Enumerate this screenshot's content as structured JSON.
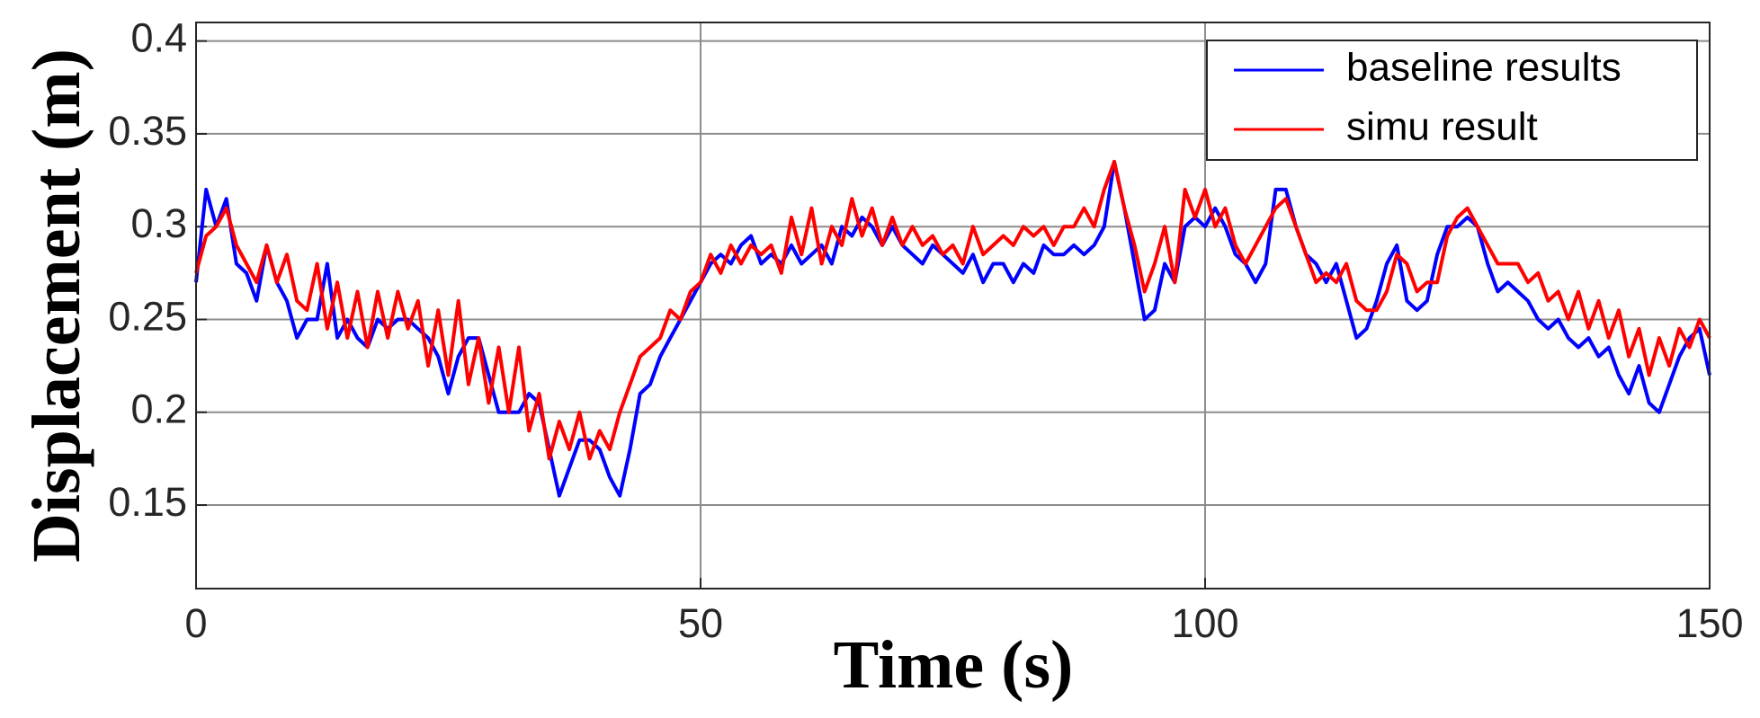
{
  "chart_data": {
    "type": "line",
    "x_label": "Time (s)",
    "y_label": "Displacement (m)",
    "xlim": [
      0,
      150
    ],
    "xticks": [
      0,
      50,
      100,
      150
    ],
    "ylim": [
      0.105,
      0.41
    ],
    "yticks": [
      0.15,
      0.2,
      0.25,
      0.3,
      0.35,
      0.4
    ],
    "grid": true,
    "legend": "top-right",
    "x": [
      0,
      1,
      2,
      3,
      4,
      5,
      6,
      7,
      8,
      9,
      10,
      11,
      12,
      13,
      14,
      15,
      16,
      17,
      18,
      19,
      20,
      21,
      22,
      23,
      24,
      25,
      26,
      27,
      28,
      29,
      30,
      31,
      32,
      33,
      34,
      35,
      36,
      37,
      38,
      39,
      40,
      41,
      42,
      43,
      44,
      45,
      46,
      47,
      48,
      49,
      50,
      51,
      52,
      53,
      54,
      55,
      56,
      57,
      58,
      59,
      60,
      61,
      62,
      63,
      64,
      65,
      66,
      67,
      68,
      69,
      70,
      71,
      72,
      73,
      74,
      75,
      76,
      77,
      78,
      79,
      80,
      81,
      82,
      83,
      84,
      85,
      86,
      87,
      88,
      89,
      90,
      91,
      92,
      93,
      94,
      95,
      96,
      97,
      98,
      99,
      100,
      101,
      102,
      103,
      104,
      105,
      106,
      107,
      108,
      109,
      110,
      111,
      112,
      113,
      114,
      115,
      116,
      117,
      118,
      119,
      120,
      121,
      122,
      123,
      124,
      125,
      126,
      127,
      128,
      129,
      130,
      131,
      132,
      133,
      134,
      135,
      136,
      137,
      138,
      139,
      140,
      141,
      142,
      143,
      144,
      145,
      146,
      147,
      148,
      149,
      150
    ],
    "series": [
      {
        "name": "baseline results",
        "color": "#0000ff",
        "values": [
          0.27,
          0.32,
          0.3,
          0.315,
          0.28,
          0.275,
          0.26,
          0.29,
          0.27,
          0.26,
          0.24,
          0.25,
          0.25,
          0.28,
          0.24,
          0.25,
          0.24,
          0.235,
          0.25,
          0.245,
          0.25,
          0.25,
          0.245,
          0.24,
          0.23,
          0.21,
          0.23,
          0.24,
          0.24,
          0.22,
          0.2,
          0.2,
          0.2,
          0.21,
          0.205,
          0.18,
          0.155,
          0.17,
          0.185,
          0.185,
          0.18,
          0.165,
          0.155,
          0.18,
          0.21,
          0.215,
          0.23,
          0.24,
          0.25,
          0.26,
          0.27,
          0.28,
          0.285,
          0.28,
          0.29,
          0.295,
          0.28,
          0.285,
          0.28,
          0.29,
          0.28,
          0.285,
          0.29,
          0.28,
          0.3,
          0.295,
          0.305,
          0.3,
          0.29,
          0.3,
          0.29,
          0.285,
          0.28,
          0.29,
          0.285,
          0.28,
          0.275,
          0.285,
          0.27,
          0.28,
          0.28,
          0.27,
          0.28,
          0.275,
          0.29,
          0.285,
          0.285,
          0.29,
          0.285,
          0.29,
          0.3,
          0.335,
          0.31,
          0.28,
          0.25,
          0.255,
          0.28,
          0.27,
          0.3,
          0.305,
          0.3,
          0.31,
          0.3,
          0.285,
          0.28,
          0.27,
          0.28,
          0.32,
          0.32,
          0.3,
          0.285,
          0.28,
          0.27,
          0.28,
          0.26,
          0.24,
          0.245,
          0.26,
          0.28,
          0.29,
          0.26,
          0.255,
          0.26,
          0.285,
          0.3,
          0.3,
          0.305,
          0.3,
          0.28,
          0.265,
          0.27,
          0.265,
          0.26,
          0.25,
          0.245,
          0.25,
          0.24,
          0.235,
          0.24,
          0.23,
          0.235,
          0.22,
          0.21,
          0.225,
          0.205,
          0.2,
          0.215,
          0.23,
          0.24,
          0.245,
          0.22
        ]
      },
      {
        "name": "simu result",
        "color": "#ff0000",
        "values": [
          0.275,
          0.295,
          0.3,
          0.31,
          0.29,
          0.28,
          0.27,
          0.29,
          0.27,
          0.285,
          0.26,
          0.255,
          0.28,
          0.245,
          0.27,
          0.24,
          0.265,
          0.235,
          0.265,
          0.24,
          0.265,
          0.245,
          0.26,
          0.225,
          0.255,
          0.22,
          0.26,
          0.215,
          0.24,
          0.205,
          0.235,
          0.2,
          0.235,
          0.19,
          0.21,
          0.175,
          0.195,
          0.18,
          0.2,
          0.175,
          0.19,
          0.18,
          0.2,
          0.215,
          0.23,
          0.235,
          0.24,
          0.255,
          0.25,
          0.265,
          0.27,
          0.285,
          0.275,
          0.29,
          0.28,
          0.29,
          0.285,
          0.29,
          0.275,
          0.305,
          0.285,
          0.31,
          0.28,
          0.3,
          0.29,
          0.315,
          0.295,
          0.31,
          0.29,
          0.305,
          0.29,
          0.3,
          0.29,
          0.295,
          0.285,
          0.29,
          0.28,
          0.3,
          0.285,
          0.29,
          0.295,
          0.29,
          0.3,
          0.295,
          0.3,
          0.29,
          0.3,
          0.3,
          0.31,
          0.3,
          0.32,
          0.335,
          0.31,
          0.29,
          0.265,
          0.28,
          0.3,
          0.27,
          0.32,
          0.305,
          0.32,
          0.3,
          0.31,
          0.29,
          0.28,
          0.29,
          0.3,
          0.31,
          0.315,
          0.3,
          0.285,
          0.27,
          0.275,
          0.27,
          0.28,
          0.26,
          0.255,
          0.255,
          0.265,
          0.285,
          0.28,
          0.265,
          0.27,
          0.27,
          0.295,
          0.305,
          0.31,
          0.3,
          0.29,
          0.28,
          0.28,
          0.28,
          0.27,
          0.275,
          0.26,
          0.265,
          0.25,
          0.265,
          0.245,
          0.26,
          0.24,
          0.255,
          0.23,
          0.245,
          0.22,
          0.24,
          0.225,
          0.245,
          0.235,
          0.25,
          0.24
        ]
      }
    ]
  }
}
